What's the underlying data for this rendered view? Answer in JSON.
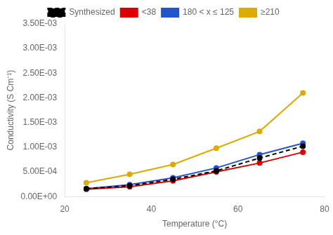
{
  "chart_data": {
    "type": "line",
    "xlabel": "Temperature (°C)",
    "ylabel": "Conductivity (S Cm⁻¹)",
    "x": [
      25,
      35,
      45,
      55,
      65,
      75
    ],
    "series": [
      {
        "name": "Synthesized",
        "color": "#000000",
        "line_style": "dashed",
        "marker": "circle",
        "values": [
          0.00016,
          0.00022,
          0.00035,
          0.00052,
          0.00078,
          0.00102
        ]
      },
      {
        "name": "<38",
        "color": "#dd0000",
        "line_style": "solid",
        "marker": "circle",
        "values": [
          0.00015,
          0.0002,
          0.00032,
          0.0005,
          0.00068,
          0.0009
        ]
      },
      {
        "name": "180 < x ≤ 125",
        "color": "#2255cc",
        "line_style": "solid",
        "marker": "circle",
        "values": [
          0.00016,
          0.00024,
          0.00038,
          0.00058,
          0.00085,
          0.00108
        ]
      },
      {
        "name": "≥210",
        "color": "#ddaa00",
        "line_style": "solid",
        "marker": "circle",
        "values": [
          0.00028,
          0.00045,
          0.00065,
          0.00098,
          0.00132,
          0.0021
        ]
      }
    ],
    "xlim": [
      20,
      80
    ],
    "xticks": [
      20,
      40,
      60,
      80
    ],
    "ylim": [
      0,
      0.0035
    ],
    "yticks": [
      {
        "value": 0,
        "label": "0.00E+00"
      },
      {
        "value": 0.0005,
        "label": "5.00E-04"
      },
      {
        "value": 0.001,
        "label": "1.00E-03"
      },
      {
        "value": 0.0015,
        "label": "1.50E-03"
      },
      {
        "value": 0.002,
        "label": "2.00E-03"
      },
      {
        "value": 0.0025,
        "label": "2.50E-03"
      },
      {
        "value": 0.003,
        "label": "3.00E-03"
      },
      {
        "value": 0.0035,
        "label": "3.50E-03"
      }
    ],
    "grid": false,
    "legend": "top"
  }
}
